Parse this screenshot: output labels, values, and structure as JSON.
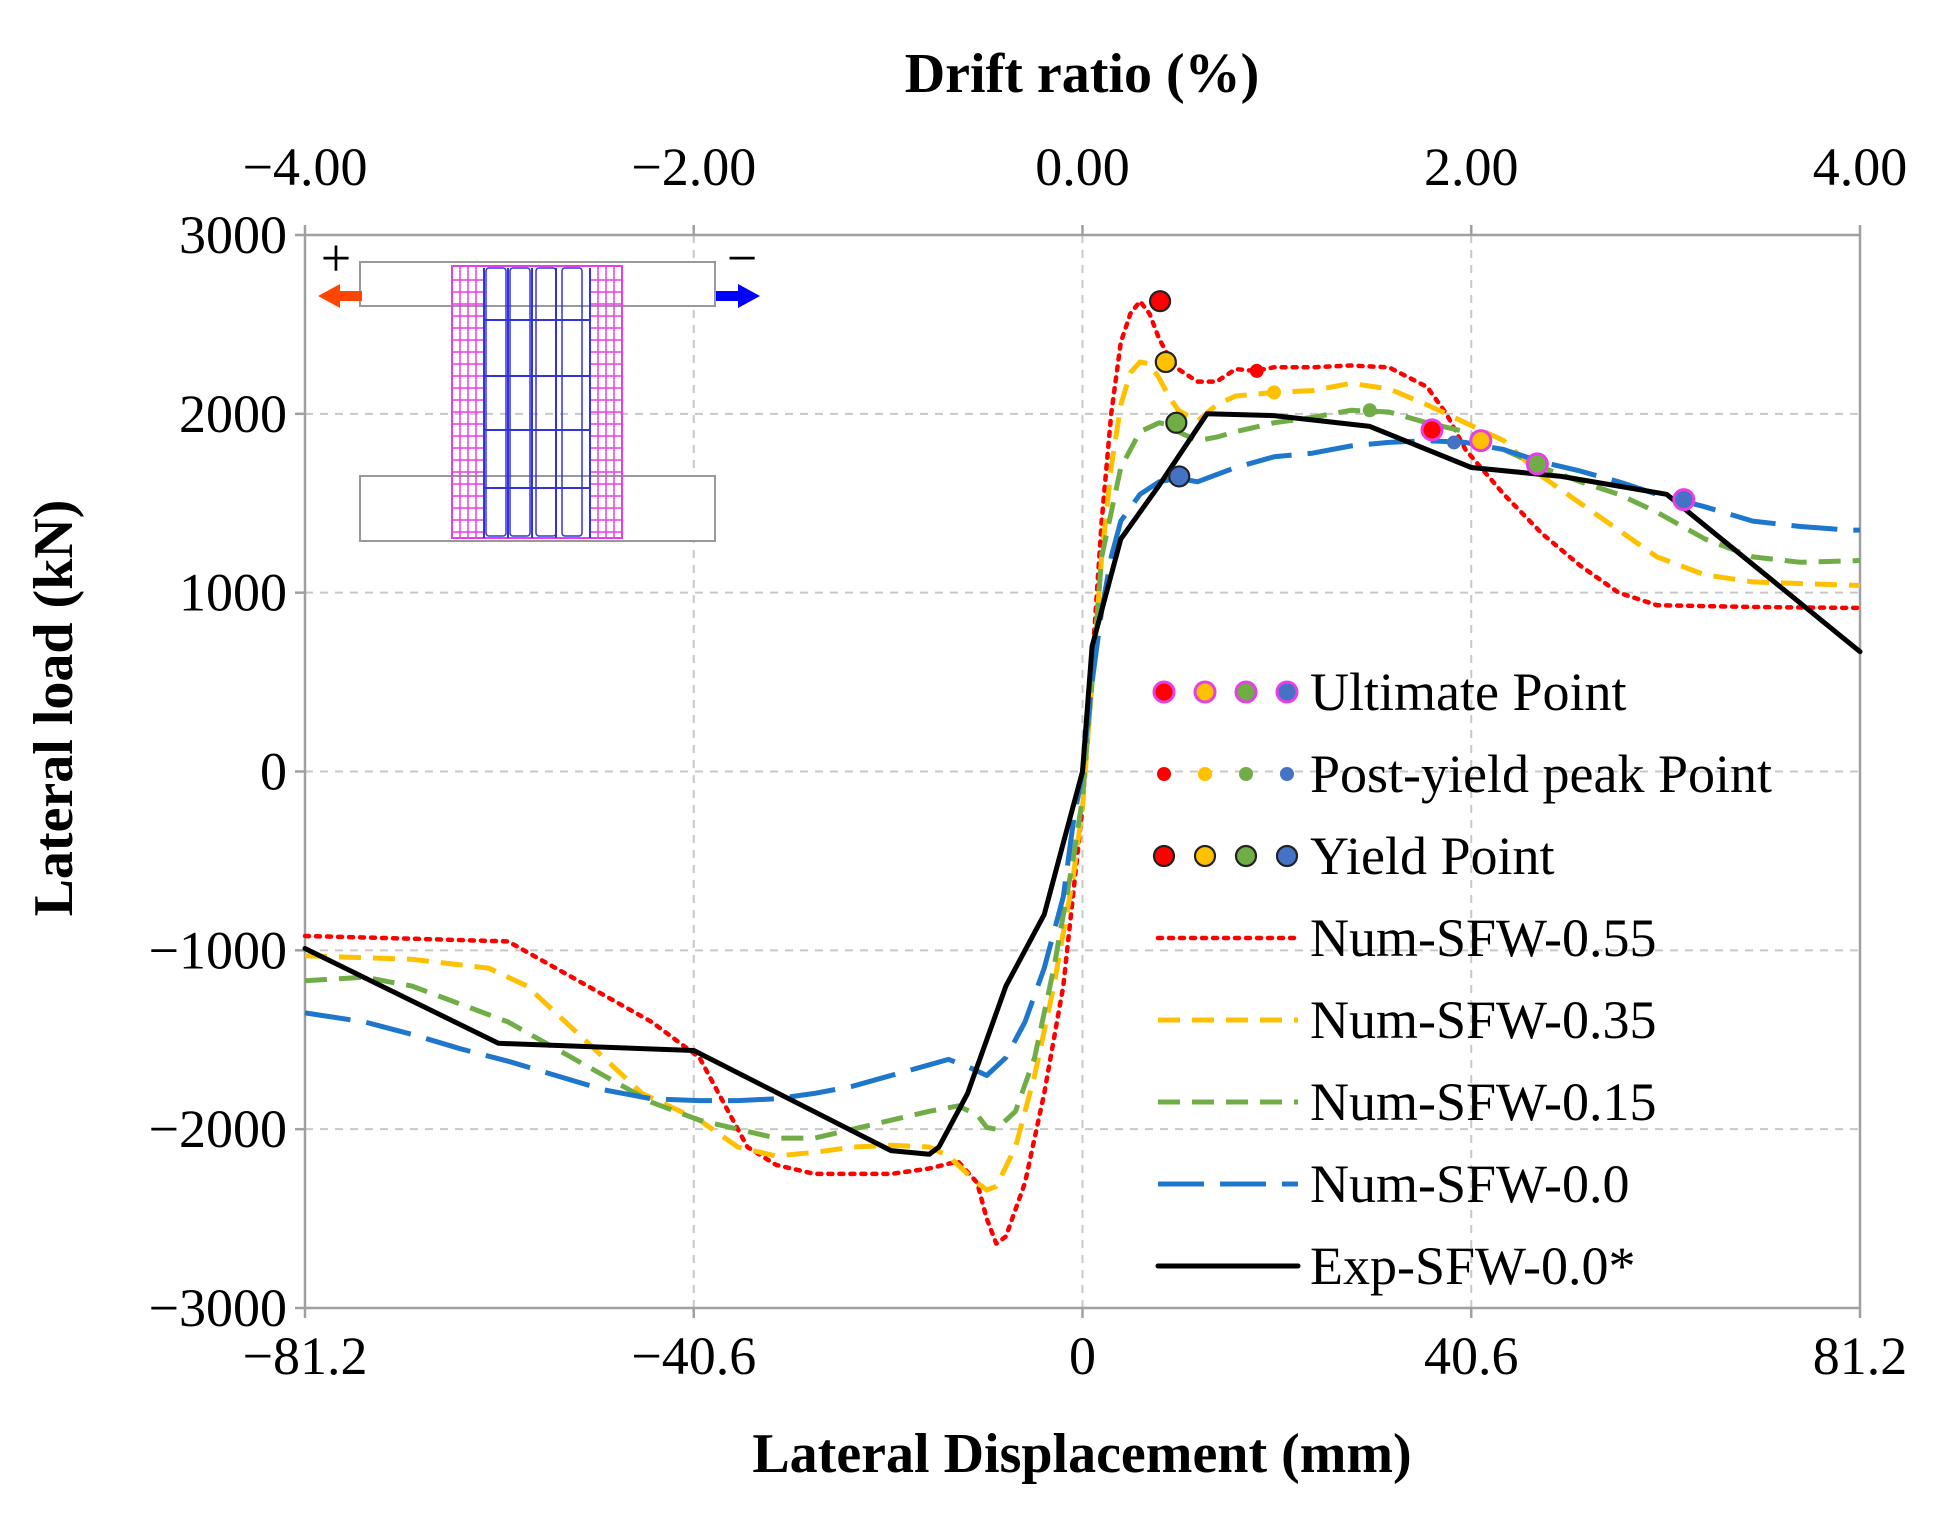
{
  "chart_data": {
    "type": "line",
    "title": "",
    "xlabel": "Lateral Displacement (mm)",
    "ylabel": "Lateral load (kN)",
    "x2label": "Drift ratio (%)",
    "xlim": [
      -81.2,
      81.2
    ],
    "ylim": [
      -3000,
      3000
    ],
    "xticks": [
      -81.2,
      -40.6,
      0,
      40.6,
      81.2
    ],
    "xtick_labels": [
      "−81.2",
      "−40.6",
      "0",
      "40.6",
      "81.2"
    ],
    "x2lim": [
      -4,
      4
    ],
    "x2ticks": [
      -4,
      -2,
      0,
      2,
      4
    ],
    "x2tick_labels": [
      "−4.00",
      "−2.00",
      "0.00",
      "2.00",
      "4.00"
    ],
    "yticks": [
      -3000,
      -2000,
      -1000,
      0,
      1000,
      2000,
      3000
    ],
    "ytick_labels": [
      "−3000",
      "−2000",
      "−1000",
      "0",
      "1000",
      "2000",
      "3000"
    ],
    "grid": true,
    "legend_position": "right",
    "series": [
      {
        "name": "Num-SFW-0.55",
        "color": "#ff0000",
        "dash": "dotted",
        "x": [
          -81.2,
          -70,
          -60,
          -55,
          -50,
          -45,
          -40,
          -38,
          -35,
          -32,
          -28,
          -24,
          -20,
          -16,
          -13,
          -11,
          -10,
          -9,
          -8,
          -6,
          -4,
          -2,
          -1,
          0,
          1,
          2,
          3,
          4,
          5,
          6,
          7,
          8,
          9,
          10,
          12,
          14,
          16,
          18,
          20,
          24,
          28,
          32,
          36,
          38,
          40,
          44,
          48,
          52,
          56,
          60,
          70,
          80,
          81.2
        ],
        "y": [
          -920,
          -935,
          -950,
          -1100,
          -1250,
          -1400,
          -1600,
          -1800,
          -2100,
          -2200,
          -2250,
          -2250,
          -2250,
          -2220,
          -2180,
          -2300,
          -2500,
          -2640,
          -2600,
          -2300,
          -1800,
          -1200,
          -700,
          -200,
          600,
          1400,
          2000,
          2400,
          2560,
          2630,
          2560,
          2420,
          2320,
          2250,
          2180,
          2180,
          2250,
          2240,
          2260,
          2260,
          2270,
          2260,
          2150,
          2000,
          1800,
          1550,
          1330,
          1150,
          1000,
          930,
          920,
          915,
          915
        ]
      },
      {
        "name": "Num-SFW-0.35",
        "color": "#ffc000",
        "dash": "dashed",
        "x": [
          -81.2,
          -70,
          -62,
          -58,
          -52,
          -46,
          -40,
          -36,
          -32,
          -28,
          -24,
          -20,
          -16,
          -14,
          -12,
          -11,
          -10,
          -9,
          -7,
          -5,
          -3,
          -1,
          0,
          1,
          2,
          3,
          4,
          5,
          6,
          7,
          8,
          9,
          10,
          12,
          14,
          16,
          20,
          24,
          28,
          32,
          36,
          40,
          44,
          48,
          52,
          56,
          60,
          65,
          70,
          81.2
        ],
        "y": [
          -1030,
          -1050,
          -1100,
          -1200,
          -1500,
          -1800,
          -1950,
          -2100,
          -2150,
          -2130,
          -2100,
          -2090,
          -2100,
          -2150,
          -2250,
          -2300,
          -2340,
          -2320,
          -2100,
          -1700,
          -1200,
          -600,
          -200,
          500,
          1200,
          1700,
          2050,
          2230,
          2290,
          2280,
          2200,
          2100,
          2020,
          1960,
          2050,
          2100,
          2120,
          2130,
          2170,
          2140,
          2050,
          1950,
          1850,
          1650,
          1500,
          1350,
          1200,
          1100,
          1060,
          1040
        ]
      },
      {
        "name": "Num-SFW-0.15",
        "color": "#70ad47",
        "dash": "dashed",
        "x": [
          -81.2,
          -75,
          -70,
          -65,
          -60,
          -55,
          -50,
          -45,
          -40,
          -36,
          -32,
          -28,
          -24,
          -20,
          -16,
          -13,
          -11,
          -10,
          -9,
          -7,
          -5,
          -3,
          -1,
          0,
          1,
          2,
          4,
          6,
          8,
          9,
          10,
          12,
          14,
          16,
          20,
          24,
          28,
          32,
          36,
          40,
          44,
          48,
          52,
          56,
          60,
          65,
          70,
          75,
          81.2
        ],
        "y": [
          -1170,
          -1150,
          -1200,
          -1300,
          -1400,
          -1550,
          -1700,
          -1850,
          -1950,
          -2000,
          -2050,
          -2050,
          -2000,
          -1950,
          -1900,
          -1870,
          -1920,
          -1990,
          -2000,
          -1900,
          -1600,
          -1100,
          -500,
          -150,
          500,
          1200,
          1700,
          1900,
          1950,
          1940,
          1900,
          1850,
          1870,
          1900,
          1950,
          1980,
          2020,
          2010,
          1950,
          1900,
          1800,
          1700,
          1620,
          1550,
          1450,
          1300,
          1200,
          1170,
          1180
        ]
      },
      {
        "name": "Num-SFW-0.0",
        "color": "#1f77cc",
        "dash": "longdash",
        "x": [
          -81.2,
          -75,
          -70,
          -65,
          -60,
          -55,
          -50,
          -45,
          -40,
          -36,
          -32,
          -28,
          -24,
          -20,
          -16,
          -14,
          -12,
          -10,
          -8,
          -6,
          -4,
          -2,
          -1,
          0,
          1,
          2,
          3,
          4,
          6,
          8,
          10,
          12,
          14,
          16,
          20,
          24,
          28,
          32,
          36,
          40,
          44,
          48,
          52,
          56,
          60,
          65,
          70,
          75,
          80,
          81.2
        ],
        "y": [
          -1350,
          -1400,
          -1470,
          -1550,
          -1620,
          -1700,
          -1780,
          -1830,
          -1840,
          -1840,
          -1830,
          -1800,
          -1760,
          -1700,
          -1640,
          -1610,
          -1650,
          -1700,
          -1600,
          -1400,
          -1100,
          -700,
          -300,
          0,
          500,
          900,
          1200,
          1400,
          1550,
          1620,
          1640,
          1620,
          1660,
          1700,
          1760,
          1780,
          1820,
          1840,
          1850,
          1840,
          1800,
          1730,
          1680,
          1620,
          1550,
          1480,
          1400,
          1370,
          1350,
          1350
        ]
      },
      {
        "name": "Exp-SFW-0.0*",
        "color": "#000000",
        "dash": "solid",
        "x": [
          -81.2,
          -61,
          -40.6,
          -20,
          -16,
          -15,
          -12,
          -8,
          -4,
          -2,
          0,
          1,
          4,
          8,
          13,
          20,
          30,
          40.6,
          50,
          61,
          81.2
        ],
        "y": [
          -990,
          -1520,
          -1560,
          -2120,
          -2140,
          -2100,
          -1800,
          -1200,
          -800,
          -400,
          0,
          700,
          1300,
          1600,
          2000,
          1990,
          1930,
          1700,
          1650,
          1550,
          670
        ]
      }
    ],
    "points": {
      "ultimate": [
        {
          "series": "Num-SFW-0.55",
          "x": 36.5,
          "y": 1910
        },
        {
          "series": "Num-SFW-0.35",
          "x": 41.6,
          "y": 1850
        },
        {
          "series": "Num-SFW-0.15",
          "x": 47.5,
          "y": 1720
        },
        {
          "series": "Num-SFW-0.0",
          "x": 62.8,
          "y": 1520
        }
      ],
      "post_yield_peak": [
        {
          "series": "Num-SFW-0.55",
          "x": 18.2,
          "y": 2240
        },
        {
          "series": "Num-SFW-0.35",
          "x": 20.0,
          "y": 2120
        },
        {
          "series": "Num-SFW-0.15",
          "x": 30.0,
          "y": 2020
        },
        {
          "series": "Num-SFW-0.0",
          "x": 38.8,
          "y": 1840
        }
      ],
      "yield": [
        {
          "series": "Num-SFW-0.55",
          "x": 8.1,
          "y": 2630
        },
        {
          "series": "Num-SFW-0.35",
          "x": 8.7,
          "y": 2290
        },
        {
          "series": "Num-SFW-0.15",
          "x": 9.8,
          "y": 1950
        },
        {
          "series": "Num-SFW-0.0",
          "x": 10.1,
          "y": 1650
        }
      ]
    },
    "legend": [
      {
        "label": "Ultimate Point",
        "kind": "ultimate"
      },
      {
        "label": "Post-yield peak Point",
        "kind": "post_yield_peak"
      },
      {
        "label": "Yield Point",
        "kind": "yield"
      },
      {
        "label": "Num-SFW-0.55",
        "kind": "line",
        "series": 0
      },
      {
        "label": "Num-SFW-0.35",
        "kind": "line",
        "series": 1
      },
      {
        "label": "Num-SFW-0.15",
        "kind": "line",
        "series": 2
      },
      {
        "label": "Num-SFW-0.0",
        "kind": "line",
        "series": 3
      },
      {
        "label": "Exp-SFW-0.0*",
        "kind": "line",
        "series": 4
      }
    ],
    "inset": {
      "plus_label": "+",
      "minus_label": "−",
      "left_arrow_color": "#ff4500",
      "right_arrow_color": "#0000ff"
    }
  }
}
